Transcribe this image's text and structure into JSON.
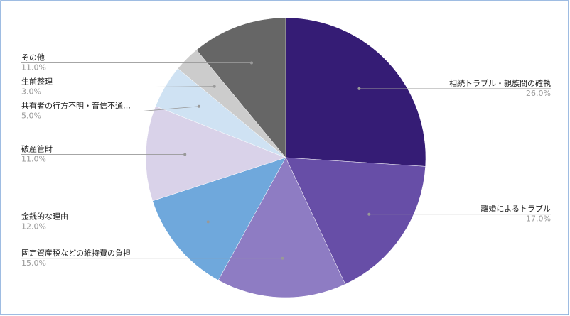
{
  "chart_data": {
    "type": "pie",
    "categories": [
      "相続トラブル・親族間の確執",
      "離婚によるトラブル",
      "固定資産税などの維持費の負担",
      "金銭的な理由",
      "破産管財",
      "共有者の行方不明・音信不通…",
      "生前整理",
      "その他"
    ],
    "values": [
      26,
      17,
      15,
      12,
      11,
      5,
      3,
      11
    ],
    "value_labels": [
      "26.0%",
      "17.0%",
      "15.0%",
      "12.0%",
      "11.0%",
      "5.0%",
      "3.0%",
      "11.0%"
    ],
    "colors": [
      "#351c75",
      "#674ea7",
      "#8e7cc3",
      "#6fa8dc",
      "#d9d2e9",
      "#cfe2f3",
      "#cccccc",
      "#666666"
    ]
  }
}
